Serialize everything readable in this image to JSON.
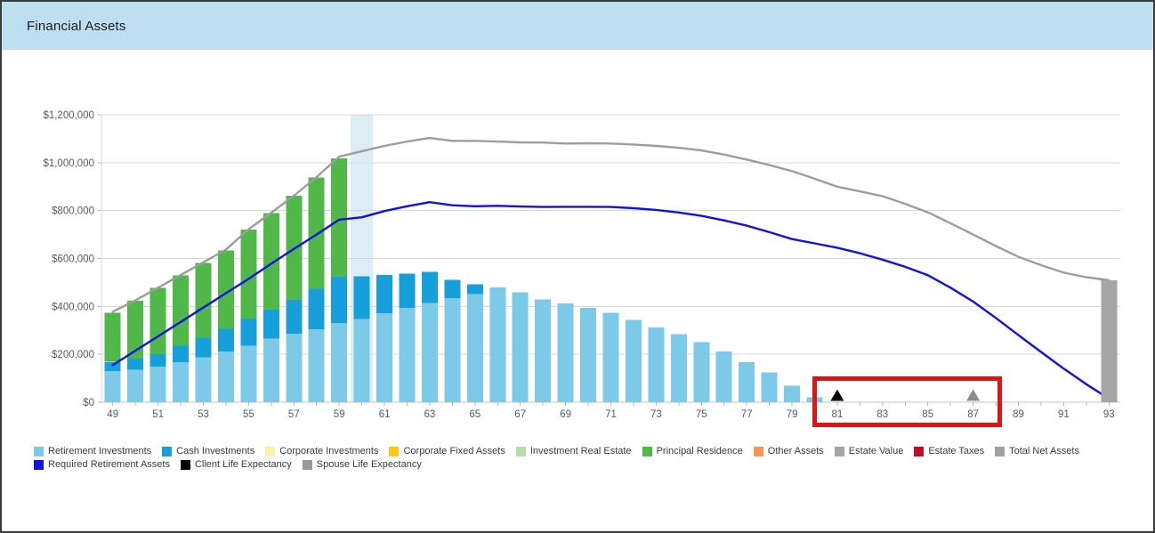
{
  "window": {
    "title": "Financial Assets"
  },
  "header": {
    "bg_color": "#bedff2"
  },
  "chart_data": {
    "type": "bar",
    "title": "Financial Assets",
    "xlabel": "Age",
    "ylabel": "",
    "ylim": [
      0,
      1200000
    ],
    "grid": true,
    "x": [
      49,
      50,
      51,
      52,
      53,
      54,
      55,
      56,
      57,
      58,
      59,
      60,
      61,
      62,
      63,
      64,
      65,
      66,
      67,
      68,
      69,
      70,
      71,
      72,
      73,
      74,
      75,
      76,
      77,
      78,
      79,
      80,
      81,
      82,
      83,
      84,
      85,
      86,
      87,
      88,
      89,
      90,
      91,
      92,
      93
    ],
    "x_labeled": [
      49,
      51,
      53,
      55,
      57,
      59,
      61,
      63,
      65,
      67,
      69,
      71,
      73,
      75,
      77,
      79,
      81,
      83,
      85,
      87,
      89,
      91,
      93
    ],
    "y_tick_values": [
      0,
      200000,
      400000,
      600000,
      800000,
      1000000,
      1200000
    ],
    "y_tick_labels": [
      "$0",
      "$200,000",
      "$400,000",
      "$600,000",
      "$800,000",
      "$1,000,000",
      "$1,200,000"
    ],
    "series": [
      {
        "name": "Retirement Investments",
        "render": "bar",
        "color": "#7dc9e8",
        "values": [
          130000,
          136000,
          149000,
          167000,
          188000,
          211000,
          235000,
          266000,
          287000,
          304000,
          331000,
          347000,
          371000,
          393000,
          415000,
          434000,
          452000,
          479000,
          458000,
          430000,
          412000,
          393000,
          373000,
          344000,
          313000,
          285000,
          250000,
          211000,
          167000,
          124000,
          68000,
          20000,
          0,
          0,
          0,
          0,
          0,
          0,
          0,
          0,
          0,
          0,
          0,
          0,
          0
        ]
      },
      {
        "name": "Cash Investments",
        "render": "bar",
        "color": "#179fdb",
        "values": [
          38000,
          46000,
          52000,
          68000,
          82000,
          96000,
          112000,
          120000,
          140000,
          169000,
          192000,
          179000,
          161000,
          143000,
          130000,
          76000,
          41000,
          0,
          0,
          0,
          0,
          0,
          0,
          0,
          0,
          0,
          0,
          0,
          0,
          0,
          0,
          0,
          0,
          0,
          0,
          0,
          0,
          0,
          0,
          0,
          0,
          0,
          0,
          0,
          0
        ]
      },
      {
        "name": "Principal Residence",
        "render": "bar",
        "color": "#4fb848",
        "values": [
          206000,
          241000,
          276000,
          295000,
          312000,
          327000,
          374000,
          404000,
          434000,
          466000,
          495000,
          0,
          0,
          0,
          0,
          0,
          0,
          0,
          0,
          0,
          0,
          0,
          0,
          0,
          0,
          0,
          0,
          0,
          0,
          0,
          0,
          0,
          0,
          0,
          0,
          0,
          0,
          0,
          0,
          0,
          0,
          0,
          0,
          0,
          0
        ]
      },
      {
        "name": "Estate Value",
        "render": "bar-top",
        "color": "#a5a5a5",
        "values": [
          0,
          0,
          0,
          0,
          0,
          0,
          0,
          0,
          0,
          0,
          0,
          0,
          0,
          0,
          0,
          0,
          0,
          0,
          0,
          0,
          0,
          0,
          0,
          0,
          0,
          0,
          0,
          0,
          0,
          0,
          0,
          0,
          0,
          0,
          0,
          0,
          0,
          0,
          0,
          0,
          0,
          0,
          0,
          0,
          509000
        ]
      },
      {
        "name": "Total Net Assets",
        "render": "line",
        "color": "#9d9d9d",
        "values": [
          378000,
          425000,
          478000,
          531000,
          584000,
          637000,
          722000,
          791000,
          862000,
          940000,
          1025000,
          1048000,
          1070000,
          1088000,
          1103000,
          1091000,
          1091000,
          1088000,
          1085000,
          1084000,
          1080000,
          1081000,
          1080000,
          1076000,
          1070000,
          1062000,
          1051000,
          1034000,
          1013000,
          990000,
          965000,
          933000,
          900000,
          880000,
          860000,
          828000,
          793000,
          747000,
          700000,
          652000,
          607000,
          572000,
          541000,
          522000,
          509000
        ]
      },
      {
        "name": "Required Retirement Assets",
        "render": "line",
        "color": "#1111e0",
        "values": [
          155000,
          215000,
          275000,
          335000,
          395000,
          455000,
          515000,
          578000,
          640000,
          700000,
          762000,
          772000,
          798000,
          818000,
          835000,
          822000,
          818000,
          820000,
          817000,
          815000,
          816000,
          816000,
          815000,
          810000,
          803000,
          792000,
          778000,
          759000,
          737000,
          710000,
          681000,
          663000,
          645000,
          622000,
          595000,
          565000,
          530000,
          478000,
          420000,
          352000,
          280000,
          210000,
          140000,
          75000,
          15000
        ]
      }
    ],
    "markers": [
      {
        "name": "Client Life Expectancy",
        "age": 81,
        "shape": "triangle",
        "color": "#000000"
      },
      {
        "name": "Spouse Life Expectancy",
        "age": 87,
        "shape": "triangle",
        "color": "#8c8c8c"
      }
    ],
    "highlight_band": {
      "age": 60,
      "color": "#dcedf5"
    },
    "annotation_box": {
      "from_age": 81,
      "to_age": 87,
      "color": "#e01212"
    }
  },
  "legend": {
    "rows": [
      [
        {
          "label": "Retirement Investments",
          "color": "#7dc9e8"
        },
        {
          "label": "Cash Investments",
          "color": "#179fdb"
        },
        {
          "label": "Corporate Investments",
          "color": "#f9f3a6"
        },
        {
          "label": "Corporate Fixed Assets",
          "color": "#ffc613"
        },
        {
          "label": "Investment Real Estate",
          "color": "#b5dfa8"
        },
        {
          "label": "Principal Residence",
          "color": "#4fb848"
        },
        {
          "label": "Other Assets",
          "color": "#f79552"
        },
        {
          "label": "Estate Value",
          "color": "#a5a5a5"
        },
        {
          "label": "Estate Taxes",
          "color": "#c00e28"
        },
        {
          "label": "Total Net Assets",
          "color": "#a0a0a0"
        }
      ],
      [
        {
          "label": "Required Retirement Assets",
          "color": "#1111e8"
        },
        {
          "label": "Client Life Expectancy",
          "color": "#000000"
        },
        {
          "label": "Spouse Life Expectancy",
          "color": "#999999"
        }
      ]
    ]
  }
}
